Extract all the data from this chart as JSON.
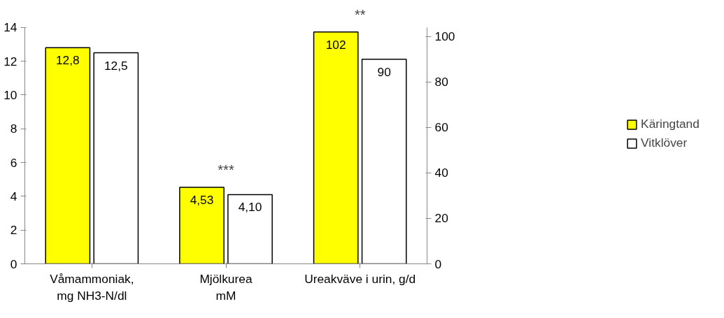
{
  "chart_data": {
    "type": "bar",
    "categories": [
      "Våmammoniak,\nmg NH3-N/dl",
      "Mjölkurea\nmM",
      "Ureakväve i urin, g/d"
    ],
    "series": [
      {
        "name": "Käringtand",
        "color": "#ffff00",
        "values": [
          12.8,
          4.53,
          null
        ],
        "value_labels": [
          "12,8",
          "4,53",
          null
        ]
      },
      {
        "name": "Vitklöver",
        "color": "#ffffff",
        "values": [
          12.5,
          4.1,
          null
        ],
        "value_labels": [
          "12,5",
          "4,10",
          null
        ]
      },
      {
        "color": "#ffff00",
        "axis": "y2",
        "values": [
          null,
          null,
          102
        ],
        "value_labels": [
          null,
          null,
          "102"
        ]
      },
      {
        "color": "#ffffff",
        "axis": "y2",
        "values": [
          null,
          null,
          90
        ],
        "value_labels": [
          null,
          null,
          "90"
        ]
      }
    ],
    "ylim": [
      0,
      14
    ],
    "yticks": [
      0,
      2,
      4,
      6,
      8,
      10,
      12,
      14
    ],
    "y2lim": [
      0,
      104
    ],
    "y2ticks": [
      0,
      20,
      40,
      60,
      80,
      100
    ],
    "annotations": [
      "***",
      "**"
    ],
    "legend": "right",
    "grid": false
  }
}
